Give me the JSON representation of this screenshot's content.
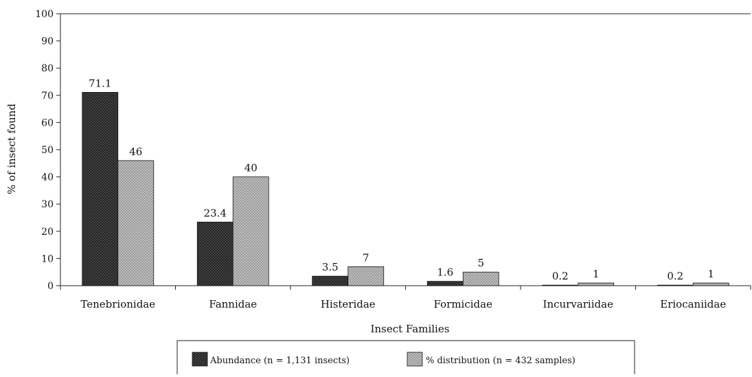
{
  "chart_data": {
    "type": "bar",
    "title": "",
    "xlabel": "Insect Families",
    "ylabel": "% of insect found",
    "ylim": [
      0,
      100
    ],
    "yticks": [
      0,
      10,
      20,
      30,
      40,
      50,
      60,
      70,
      80,
      90,
      100
    ],
    "categories": [
      "Tenebrionidae",
      "Fannidae",
      "Histeridae",
      "Formicidae",
      "Incurvariidae",
      "Eriocaniidae"
    ],
    "series": [
      {
        "name": "Abundance (n = 1,131 insects)",
        "color": "#333333",
        "values": [
          71.1,
          23.4,
          3.5,
          1.6,
          0.2,
          0.2
        ],
        "labels": [
          "71.1",
          "23.4",
          "3.5",
          "1.6",
          "0.2",
          "0.2"
        ]
      },
      {
        "name": "% distribution (n = 432 samples)",
        "color": "#a8a8a8",
        "values": [
          46,
          40,
          7,
          5,
          1,
          1
        ],
        "labels": [
          "46",
          "40",
          "7",
          "5",
          "1",
          "1"
        ]
      }
    ],
    "grid": false,
    "legend_position": "bottom"
  }
}
